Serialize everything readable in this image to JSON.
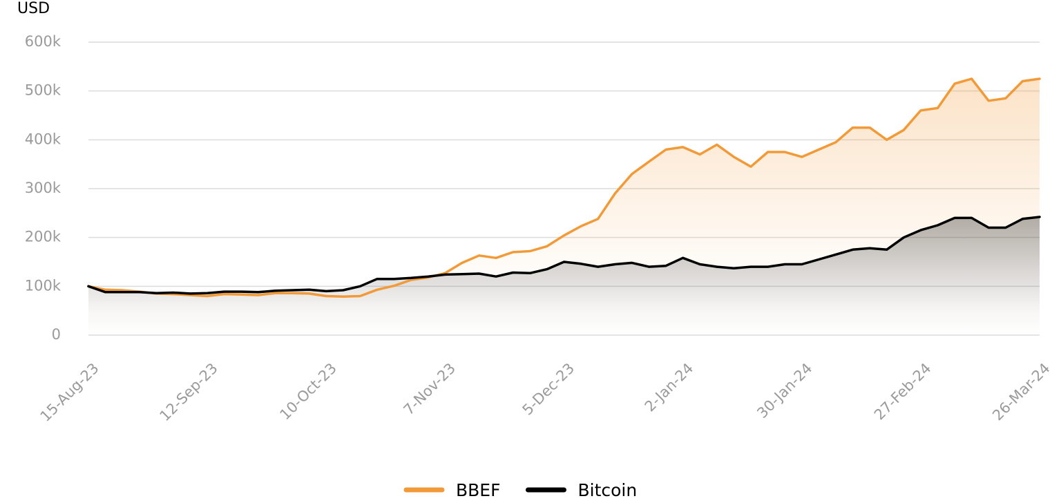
{
  "chart_data": {
    "type": "line",
    "y_label": "USD",
    "categories": [
      "15-Aug-23",
      null,
      null,
      null,
      null,
      null,
      null,
      "12-Sep-23",
      null,
      null,
      null,
      null,
      null,
      null,
      "10-Oct-23",
      null,
      null,
      null,
      null,
      null,
      null,
      "7-Nov-23",
      null,
      null,
      null,
      null,
      null,
      null,
      "5-Dec-23",
      null,
      null,
      null,
      null,
      null,
      null,
      "2-Jan-24",
      null,
      null,
      null,
      null,
      null,
      null,
      "30-Jan-24",
      null,
      null,
      null,
      null,
      null,
      null,
      "27-Feb-24",
      null,
      null,
      null,
      null,
      null,
      null,
      "26-Mar-24"
    ],
    "series": [
      {
        "name": "BBEF",
        "color": "#f29a38",
        "values": [
          100000,
          93000,
          92000,
          89000,
          85000,
          84000,
          82000,
          80000,
          84000,
          83000,
          82000,
          86000,
          86000,
          85000,
          80000,
          79000,
          80000,
          93000,
          101000,
          113000,
          118000,
          127000,
          148000,
          163000,
          158000,
          170000,
          172000,
          182000,
          204000,
          223000,
          238000,
          290000,
          330000,
          355000,
          380000,
          385000,
          370000,
          390000,
          365000,
          345000,
          375000,
          375000,
          365000,
          380000,
          395000,
          425000,
          425000,
          400000,
          420000,
          460000,
          465000,
          515000,
          525000,
          480000,
          485000,
          520000,
          525000
        ]
      },
      {
        "name": "Bitcoin",
        "color": "#000000",
        "values": [
          100000,
          88000,
          88000,
          88000,
          86000,
          87000,
          85000,
          86000,
          89000,
          89000,
          88000,
          91000,
          92000,
          93000,
          90000,
          92000,
          100000,
          115000,
          115000,
          117000,
          120000,
          124000,
          125000,
          126000,
          120000,
          128000,
          127000,
          135000,
          150000,
          146000,
          140000,
          145000,
          148000,
          140000,
          142000,
          158000,
          145000,
          140000,
          137000,
          140000,
          140000,
          145000,
          145000,
          155000,
          165000,
          175000,
          178000,
          175000,
          200000,
          215000,
          225000,
          240000,
          240000,
          220000,
          220000,
          238000,
          242000
        ]
      }
    ],
    "ylim": [
      0,
      600000
    ],
    "yticks": [
      0,
      {
        "value": 100000,
        "label": "100k"
      },
      {
        "value": 200000,
        "label": "200k"
      },
      {
        "value": 300000,
        "label": "300k"
      },
      {
        "value": 400000,
        "label": "400k"
      },
      {
        "value": 500000,
        "label": "500k"
      },
      {
        "value": 600000,
        "label": "600k"
      }
    ],
    "grid": true,
    "legend": "bottom"
  }
}
